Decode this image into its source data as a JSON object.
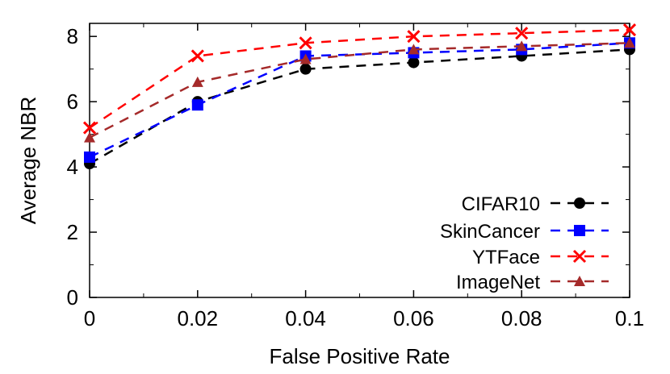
{
  "chart_data": {
    "type": "line",
    "xlabel": "False Positive Rate",
    "ylabel": "Average NBR",
    "x": [
      0,
      0.02,
      0.04,
      0.06,
      0.08,
      0.1
    ],
    "xticks": [
      "0",
      "0.02",
      "0.04",
      "0.06",
      "0.08",
      "0.1"
    ],
    "yticks": [
      "0",
      "2",
      "4",
      "6",
      "8"
    ],
    "xlim": [
      0,
      0.1
    ],
    "ylim": [
      0,
      8.4
    ],
    "grid": false,
    "legend_position": "bottom-right",
    "series": [
      {
        "name": "CIFAR10",
        "color": "#000000",
        "marker": "circle",
        "values": [
          4.1,
          6.0,
          7.0,
          7.2,
          7.4,
          7.6
        ]
      },
      {
        "name": "SkinCancer",
        "color": "#0000ff",
        "marker": "square",
        "values": [
          4.3,
          5.9,
          7.4,
          7.5,
          7.6,
          7.8
        ]
      },
      {
        "name": "YTFace",
        "color": "#ff0000",
        "marker": "x",
        "values": [
          5.2,
          7.4,
          7.8,
          8.0,
          8.1,
          8.2
        ]
      },
      {
        "name": "ImageNet",
        "color": "#a52a2a",
        "marker": "triangle",
        "values": [
          4.9,
          6.6,
          7.3,
          7.6,
          7.7,
          7.8
        ]
      }
    ]
  }
}
